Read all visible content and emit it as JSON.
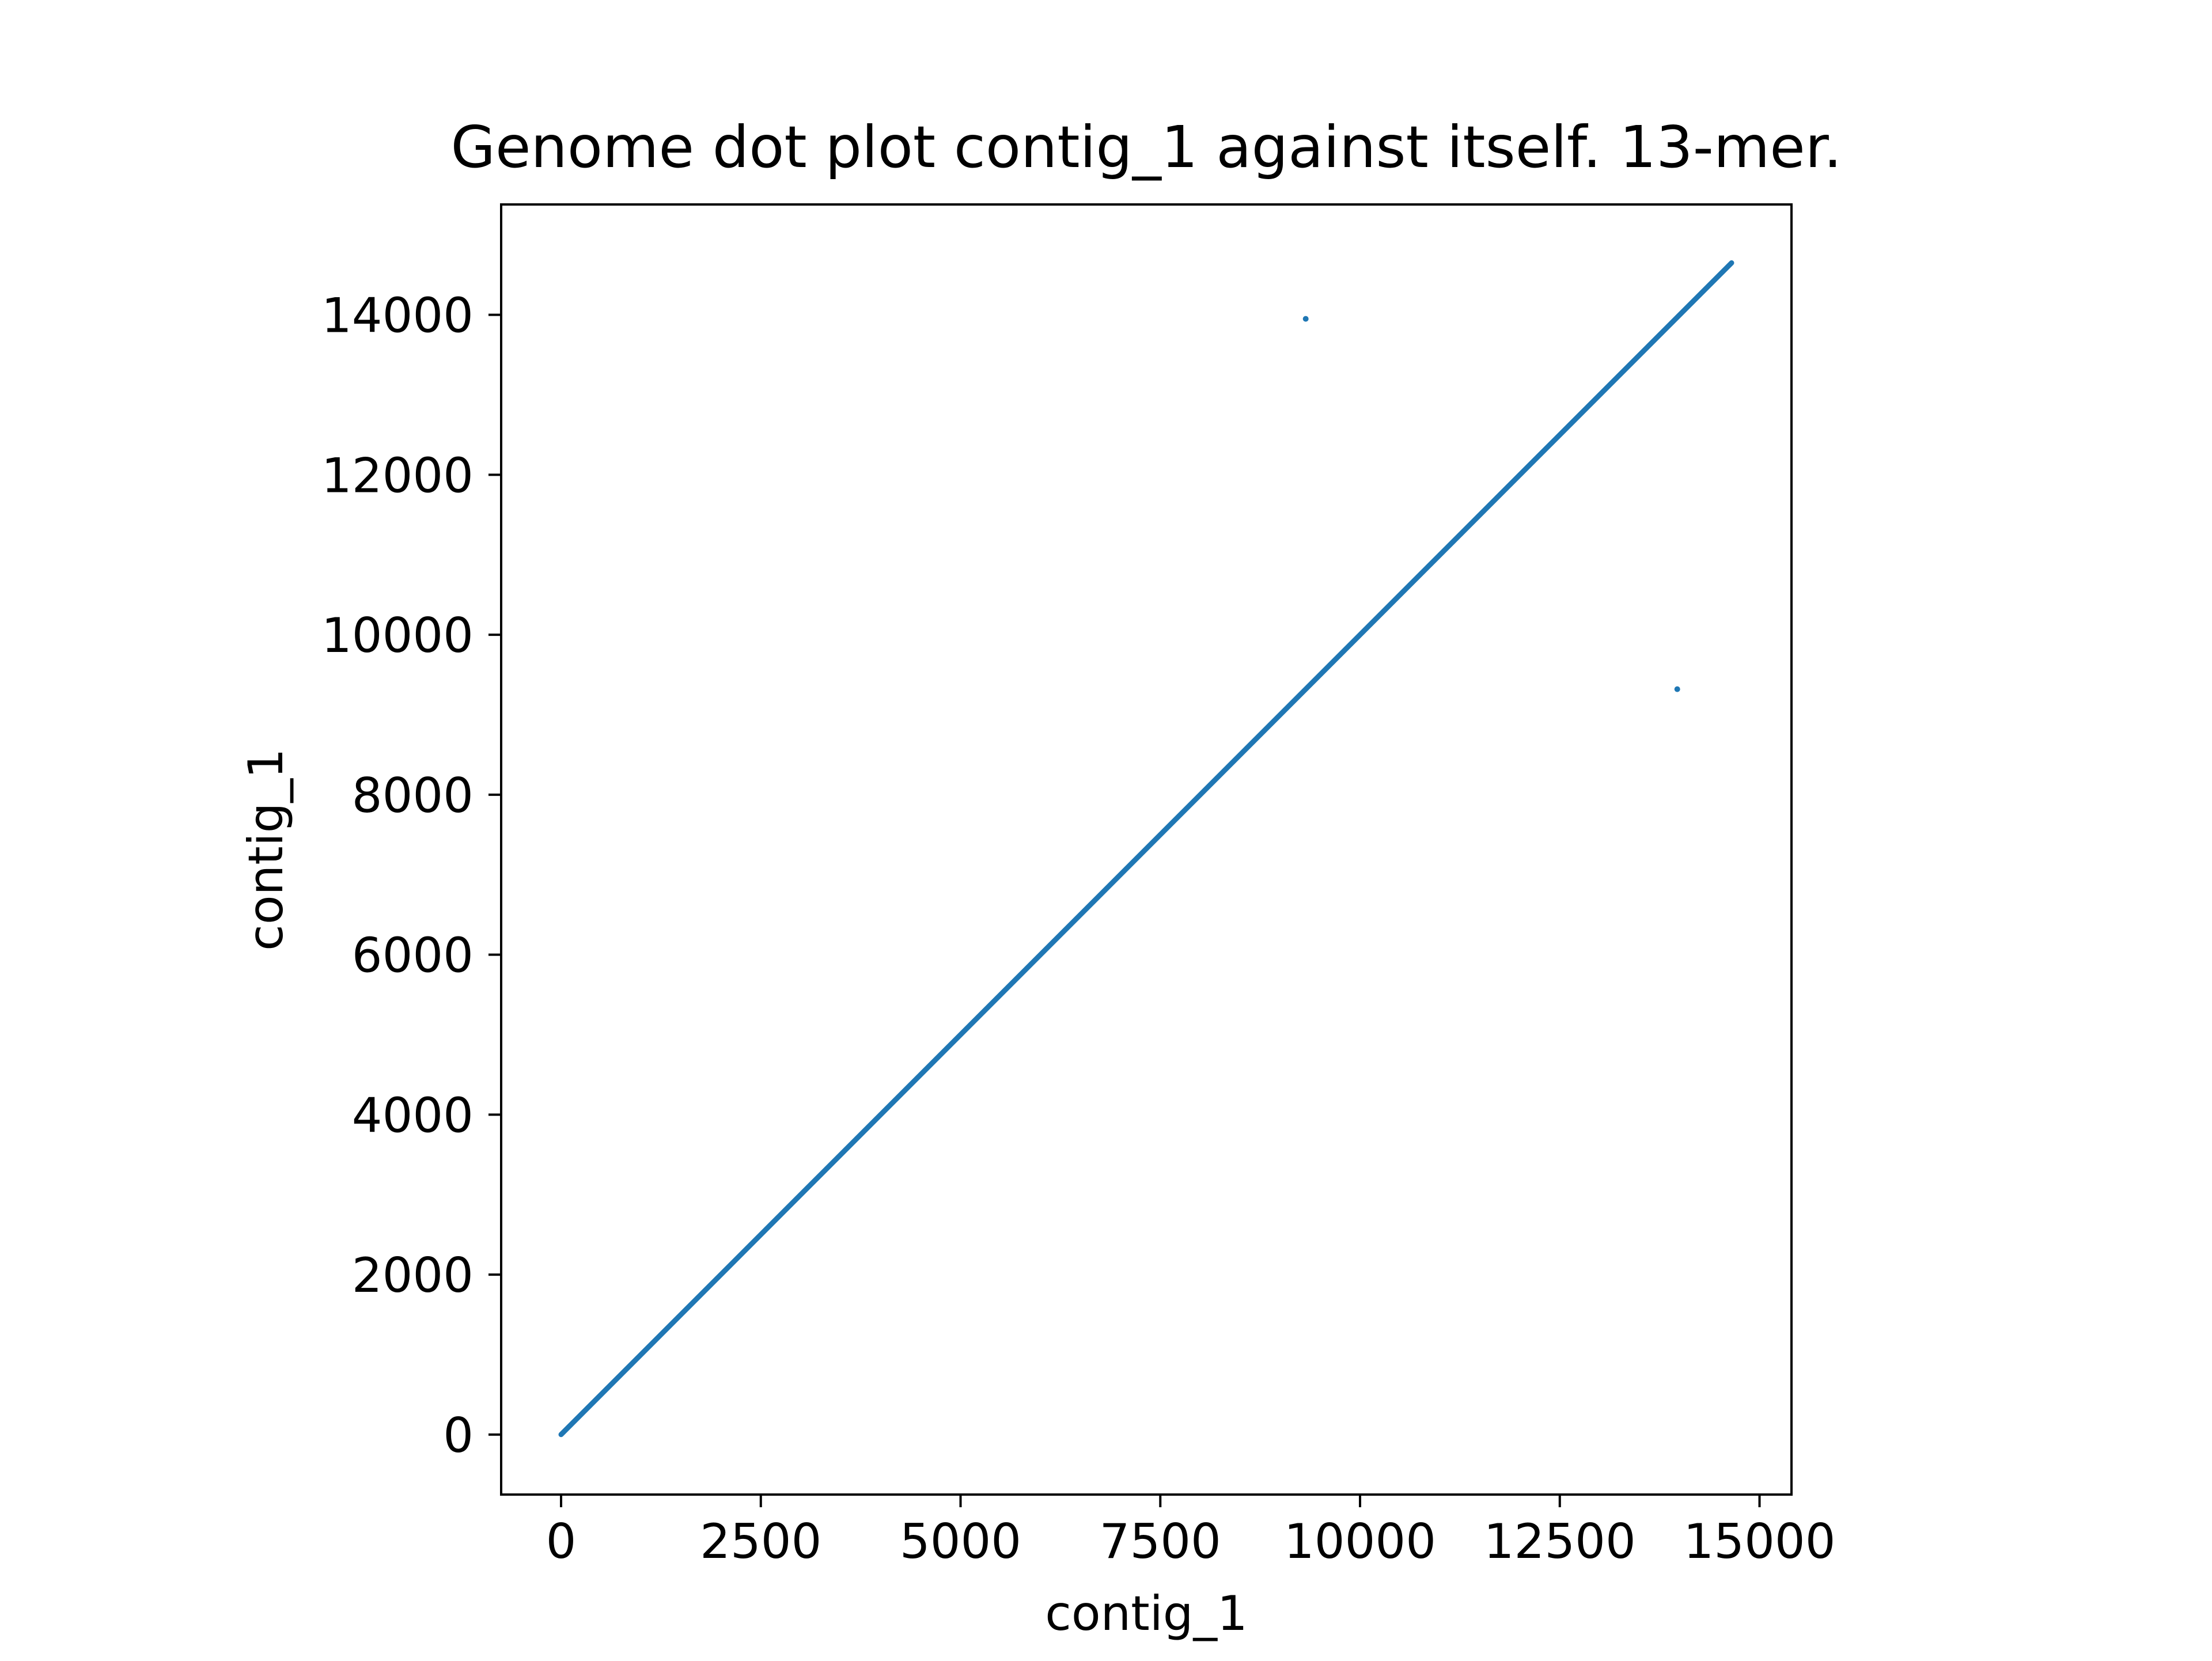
{
  "chart_data": {
    "type": "scatter",
    "title": "Genome dot plot contig_1 against itself. 13-mer.",
    "xlabel": "contig_1",
    "ylabel": "contig_1",
    "xlim": [
      -750,
      15400
    ],
    "ylim": [
      -750,
      15380
    ],
    "xticks": [
      0,
      2500,
      5000,
      7500,
      10000,
      12500,
      15000
    ],
    "xtick_labels": [
      "0",
      "2500",
      "5000",
      "7500",
      "10000",
      "12500",
      "15000"
    ],
    "yticks": [
      0,
      2000,
      4000,
      6000,
      8000,
      10000,
      12000,
      14000
    ],
    "ytick_labels": [
      "0",
      "2000",
      "4000",
      "6000",
      "8000",
      "10000",
      "12000",
      "14000"
    ],
    "grid": false,
    "legend": false,
    "color": "#1f77b4",
    "series": [
      {
        "kind": "diagonal",
        "x": [
          0,
          14650
        ],
        "y": [
          0,
          14650
        ]
      },
      {
        "kind": "points",
        "x": [
          9320,
          13970
        ],
        "y": [
          13950,
          9320
        ]
      }
    ]
  }
}
